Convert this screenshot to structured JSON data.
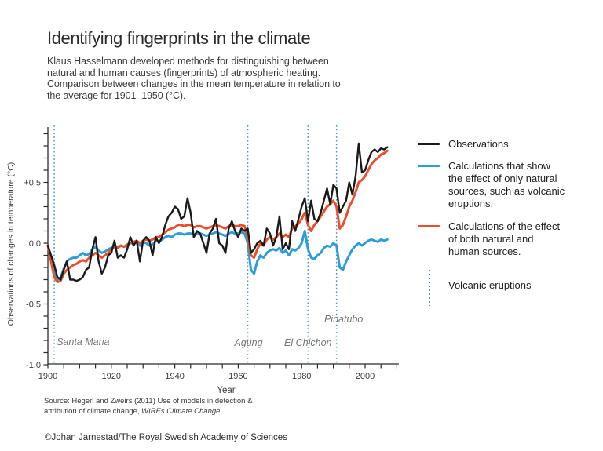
{
  "header": {
    "title": "Identifying fingerprints in the climate",
    "subtitle_lines": [
      "Klaus Hasselmann developed methods for distinguishing between",
      "natural and human causes (fingerprints) of atmospheric heating.",
      "Comparison between changes in the mean temperature in relation to",
      "the average for 1901–1950 (°C)."
    ]
  },
  "legend": {
    "items": [
      {
        "swatch": "line",
        "color": "#1a1a1a",
        "lines": [
          "Observations"
        ]
      },
      {
        "swatch": "line",
        "color": "#2d9dd8",
        "lines": [
          "Calculations that show",
          "the effect of only natural",
          "sources, such as volcanic",
          "eruptions."
        ]
      },
      {
        "swatch": "line",
        "color": "#e8502b",
        "lines": [
          "Calculations of the effect",
          "of both natural and",
          "human sources."
        ]
      },
      {
        "swatch": "dotted-vertical",
        "color": "#4e93bb",
        "lines": [
          "Volcanic eruptions"
        ]
      }
    ]
  },
  "footer": {
    "source_line1": "Source: Hegerl and Zweirs (2011) Use of models in detection &",
    "source_line2_prefix": "attribution of climate change, ",
    "source_line2_italic": "WIREs Climate Change",
    "source_line2_suffix": ".",
    "copyright": "©Johan Jarnestad/The Royal Swedish Academy of Sciences"
  },
  "chart_data": {
    "type": "line",
    "xlabel": "Year",
    "ylabel": "Observations of changes in temperature (°C)",
    "x_start": 1900,
    "x_step": 1,
    "xlim": [
      1900,
      2011
    ],
    "ylim": [
      -1.0,
      0.9
    ],
    "x_tick_labels": [
      1900,
      1920,
      1940,
      1960,
      1980,
      2000
    ],
    "x_minor_tick_step": 5,
    "y_tick_labels": [
      {
        "label": "+0.5",
        "value": 0.5
      },
      {
        "label": "0.0",
        "value": 0.0
      },
      {
        "label": "-0.5",
        "value": -0.5
      },
      {
        "label": "-1.0",
        "value": -1.0
      }
    ],
    "y_minor_tick_step": 0.1,
    "grid": false,
    "legend_position": "right",
    "colors": {
      "axis": "#2b2b2b",
      "tick_label": "#3b3b3b",
      "volcanic_line": "#4e93bb",
      "volcano_label": "#757575"
    },
    "volcanoes": [
      {
        "name": "Santa Maria",
        "year": 1902,
        "label": {
          "dx": 3,
          "y": 440,
          "anchor": "start"
        }
      },
      {
        "name": "Agung",
        "year": 1963,
        "label": {
          "dx": 1,
          "y": 441,
          "anchor": "middle"
        }
      },
      {
        "name": "El Chichon",
        "year": 1982,
        "label": {
          "dx": 0,
          "y": 441,
          "anchor": "middle"
        }
      },
      {
        "name": "Pinatubo",
        "year": 1991,
        "label": {
          "dx": 9,
          "y": 411,
          "anchor": "middle"
        }
      }
    ],
    "series": [
      {
        "name": "Observations",
        "color": "#1a1a1a",
        "width": 2.4,
        "z": 3,
        "values": [
          -0.02,
          -0.1,
          -0.18,
          -0.28,
          -0.3,
          -0.22,
          -0.15,
          -0.3,
          -0.3,
          -0.31,
          -0.3,
          -0.28,
          -0.22,
          -0.2,
          -0.05,
          0.05,
          -0.15,
          -0.25,
          -0.2,
          -0.1,
          -0.08,
          0.02,
          -0.12,
          -0.1,
          -0.12,
          -0.05,
          0.05,
          -0.02,
          0.02,
          -0.15,
          0.02,
          0.05,
          0.02,
          -0.1,
          0.05,
          0.0,
          0.05,
          0.15,
          0.22,
          0.25,
          0.3,
          0.28,
          0.2,
          0.22,
          0.37,
          0.25,
          0.05,
          0.1,
          0.08,
          0.0,
          -0.08,
          0.08,
          0.12,
          0.2,
          0.0,
          -0.02,
          -0.08,
          0.12,
          0.18,
          0.1,
          0.05,
          0.12,
          0.1,
          0.12,
          -0.08,
          -0.05,
          0.0,
          0.02,
          -0.02,
          0.12,
          0.08,
          -0.02,
          0.05,
          0.22,
          -0.05,
          0.0,
          -0.05,
          0.18,
          0.1,
          0.2,
          0.3,
          0.37,
          0.18,
          0.35,
          0.2,
          0.18,
          0.25,
          0.35,
          0.45,
          0.32,
          0.48,
          0.45,
          0.25,
          0.3,
          0.35,
          0.5,
          0.4,
          0.55,
          0.82,
          0.58,
          0.6,
          0.68,
          0.75,
          0.77,
          0.75,
          0.78,
          0.77,
          0.79
        ]
      },
      {
        "name": "Calculations natural sources only",
        "color": "#2d9dd8",
        "width": 3,
        "z": 1,
        "values": [
          -0.02,
          -0.12,
          -0.25,
          -0.3,
          -0.28,
          -0.21,
          -0.15,
          -0.13,
          -0.12,
          -0.12,
          -0.1,
          -0.08,
          -0.1,
          -0.09,
          -0.05,
          -0.03,
          -0.06,
          -0.08,
          -0.07,
          -0.05,
          -0.04,
          -0.02,
          -0.03,
          -0.02,
          -0.03,
          -0.02,
          0.0,
          0.0,
          0.01,
          -0.02,
          0.01,
          0.0,
          -0.02,
          -0.01,
          0.02,
          0.01,
          0.03,
          0.05,
          0.06,
          0.05,
          0.07,
          0.08,
          0.08,
          0.07,
          0.08,
          0.08,
          0.07,
          0.08,
          0.08,
          0.07,
          0.06,
          0.07,
          0.08,
          0.09,
          0.08,
          0.07,
          0.06,
          0.08,
          0.09,
          0.08,
          0.08,
          0.09,
          0.08,
          0.0,
          -0.22,
          -0.25,
          -0.15,
          -0.1,
          -0.12,
          -0.08,
          -0.06,
          -0.05,
          -0.06,
          -0.04,
          -0.08,
          -0.06,
          -0.1,
          -0.05,
          -0.06,
          -0.04,
          0.0,
          0.1,
          -0.05,
          -0.12,
          -0.13,
          -0.1,
          -0.08,
          -0.04,
          -0.02,
          -0.03,
          0.0,
          -0.02,
          -0.2,
          -0.22,
          -0.15,
          -0.1,
          -0.05,
          -0.02,
          0.0,
          -0.02,
          0.0,
          0.02,
          0.03,
          0.02,
          0.01,
          0.03,
          0.02,
          0.03
        ]
      },
      {
        "name": "Calculations natural and human sources",
        "color": "#e8502b",
        "width": 3,
        "z": 2,
        "values": [
          -0.02,
          -0.15,
          -0.28,
          -0.32,
          -0.31,
          -0.25,
          -0.22,
          -0.2,
          -0.18,
          -0.17,
          -0.15,
          -0.14,
          -0.15,
          -0.12,
          -0.1,
          -0.08,
          -0.1,
          -0.12,
          -0.1,
          -0.08,
          -0.05,
          -0.03,
          -0.04,
          -0.02,
          -0.03,
          -0.01,
          0.0,
          0.01,
          0.02,
          0.0,
          0.02,
          0.03,
          0.02,
          0.03,
          0.05,
          0.05,
          0.07,
          0.09,
          0.11,
          0.12,
          0.13,
          0.15,
          0.15,
          0.14,
          0.15,
          0.15,
          0.13,
          0.14,
          0.14,
          0.13,
          0.12,
          0.13,
          0.14,
          0.15,
          0.14,
          0.13,
          0.12,
          0.14,
          0.15,
          0.14,
          0.14,
          0.15,
          0.14,
          0.05,
          -0.1,
          -0.12,
          -0.05,
          0.0,
          -0.02,
          0.03,
          0.05,
          0.03,
          0.05,
          0.08,
          0.05,
          0.07,
          0.05,
          0.12,
          0.14,
          0.16,
          0.2,
          0.25,
          0.15,
          0.1,
          0.15,
          0.18,
          0.22,
          0.26,
          0.3,
          0.32,
          0.35,
          0.3,
          0.12,
          0.15,
          0.22,
          0.3,
          0.35,
          0.42,
          0.5,
          0.52,
          0.55,
          0.6,
          0.65,
          0.68,
          0.7,
          0.73,
          0.74,
          0.76
        ]
      }
    ]
  }
}
